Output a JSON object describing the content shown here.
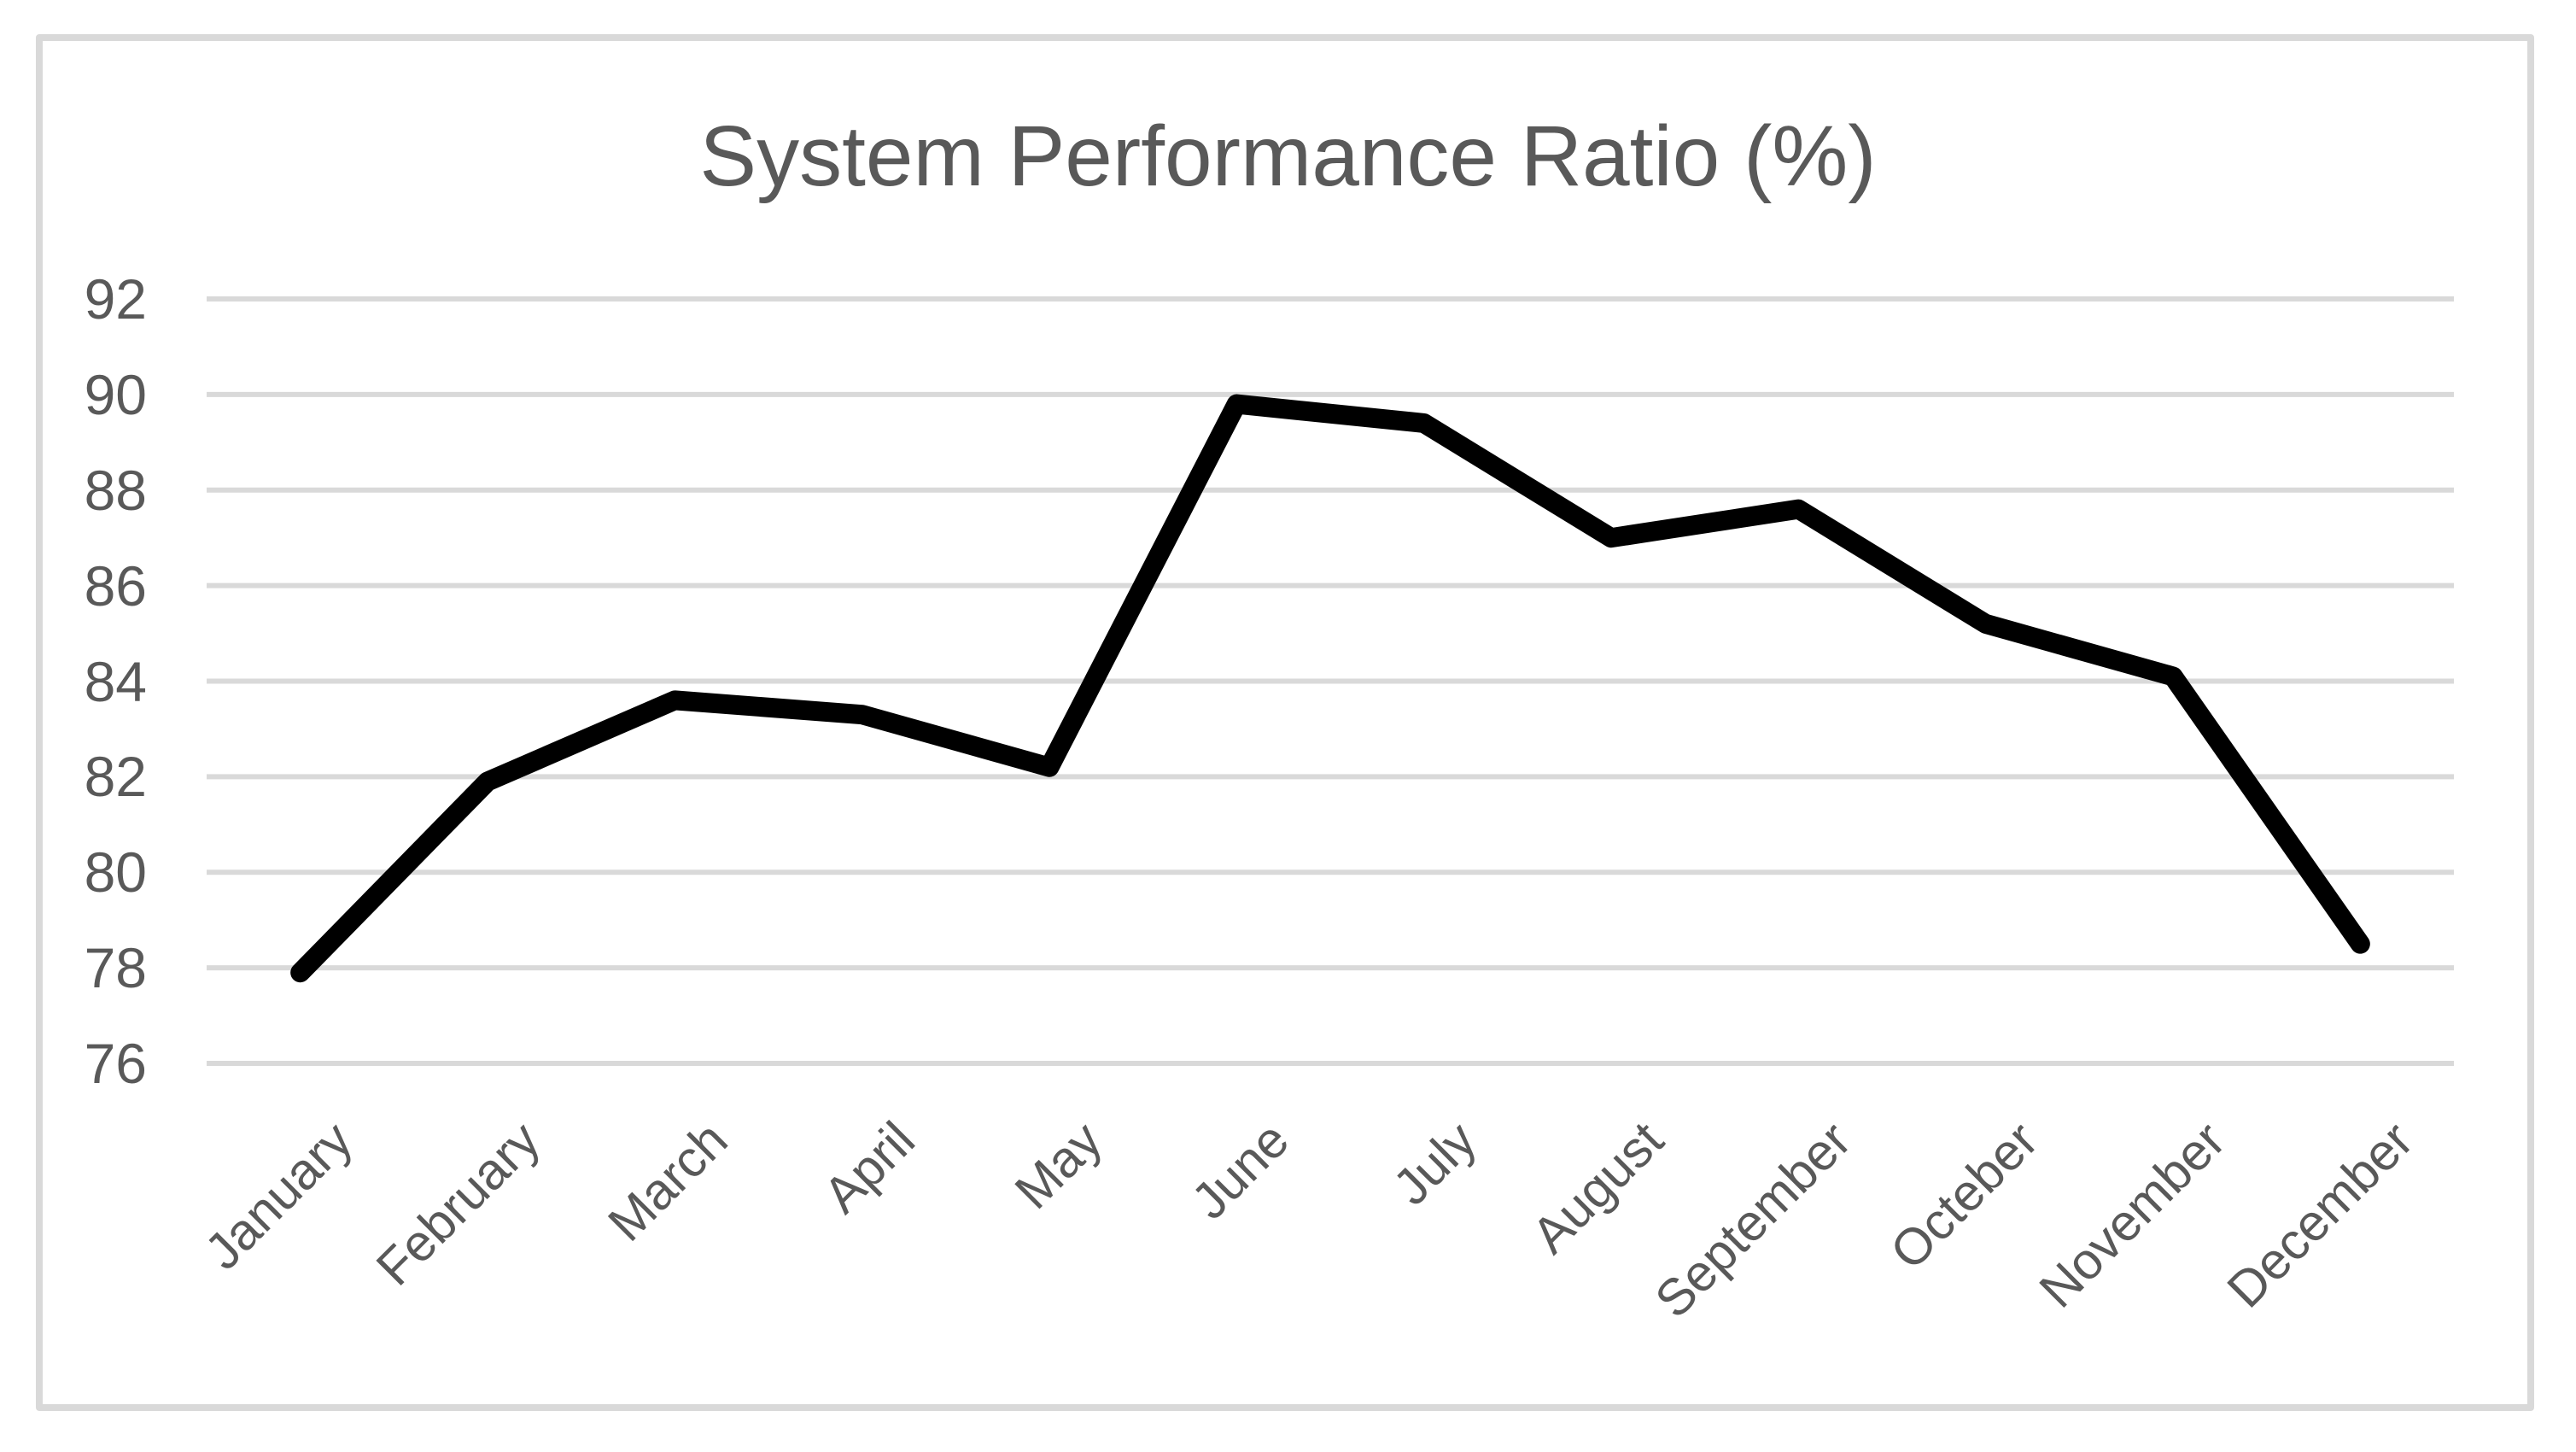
{
  "chart_data": {
    "type": "line",
    "title": "System Performance Ratio (%)",
    "categories": [
      "January",
      "February",
      "March",
      "April",
      "May",
      "June",
      "July",
      "August",
      "September",
      "Octeber",
      "November",
      "December"
    ],
    "values": [
      77.9,
      81.9,
      83.6,
      83.3,
      82.2,
      89.8,
      89.4,
      87.0,
      87.6,
      85.2,
      84.1,
      78.5
    ],
    "ylim": [
      76,
      92
    ],
    "ytick_step": 2,
    "ytick_labels": [
      "76",
      "78",
      "80",
      "82",
      "84",
      "86",
      "88",
      "90",
      "92"
    ],
    "xlabel": "",
    "ylabel": "",
    "grid": "horizontal",
    "legend": "none",
    "series_color": "#000000",
    "series_stroke_width": 23,
    "gridline_color": "#d9d9d9",
    "gridline_stroke_width": 6,
    "frame_color": "#d9d9d9",
    "text_color": "#595959",
    "background": "#ffffff"
  }
}
